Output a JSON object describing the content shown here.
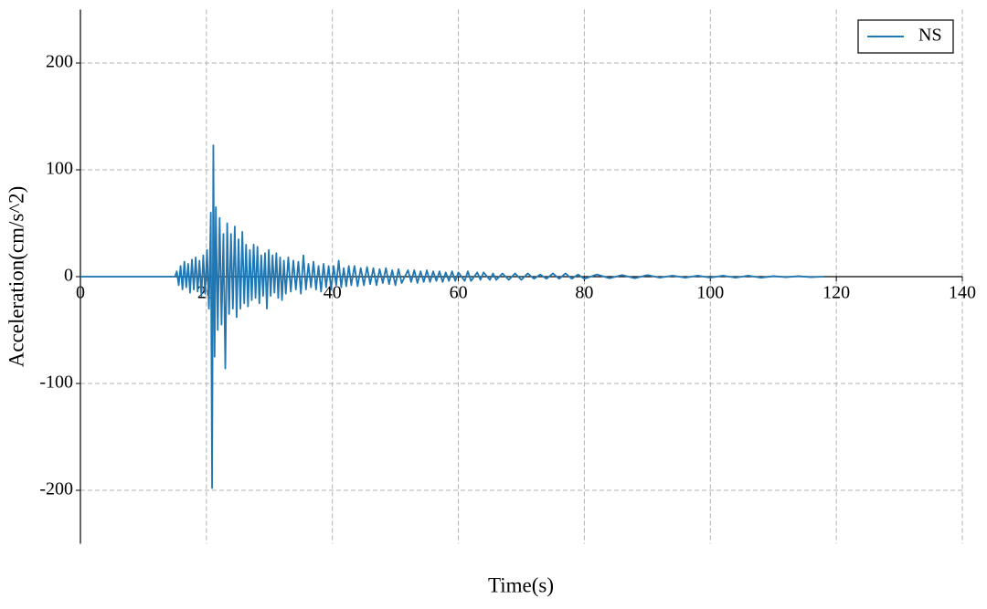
{
  "chart_data": {
    "type": "line",
    "x_label": "Time(s)",
    "y_label": "Acceleration(cm/s^2)",
    "x": [
      0,
      15.0,
      15.3,
      15.6,
      15.9,
      16.2,
      16.5,
      16.8,
      17.1,
      17.4,
      17.7,
      18.0,
      18.3,
      18.6,
      18.9,
      19.2,
      19.5,
      19.8,
      20.1,
      20.4,
      20.7,
      20.9,
      21.1,
      21.3,
      21.5,
      21.8,
      22.1,
      22.4,
      22.7,
      23.0,
      23.3,
      23.6,
      23.9,
      24.2,
      24.5,
      24.8,
      25.1,
      25.4,
      25.7,
      26.0,
      26.3,
      26.6,
      26.9,
      27.2,
      27.5,
      27.8,
      28.1,
      28.4,
      28.7,
      29.0,
      29.3,
      29.6,
      29.9,
      30.2,
      30.5,
      30.8,
      31.1,
      31.4,
      31.7,
      32.0,
      32.3,
      32.6,
      33.0,
      33.4,
      33.8,
      34.2,
      34.6,
      35.0,
      35.4,
      35.8,
      36.2,
      36.6,
      37.0,
      37.4,
      37.8,
      38.2,
      38.6,
      39.0,
      39.4,
      39.8,
      40.2,
      40.6,
      41.0,
      41.4,
      41.8,
      42.2,
      42.6,
      43.0,
      43.5,
      44.0,
      44.5,
      45.0,
      45.5,
      46.0,
      46.5,
      47.0,
      47.5,
      48.0,
      48.5,
      49.0,
      49.5,
      50.0,
      50.5,
      51.0,
      52.0,
      52.5,
      53.0,
      53.5,
      54.0,
      54.5,
      55.0,
      55.5,
      56.0,
      56.5,
      57.0,
      57.5,
      58.0,
      58.5,
      59.0,
      59.5,
      60.0,
      61.0,
      61.5,
      62.0,
      63.0,
      63.5,
      64.0,
      65.0,
      65.5,
      66.0,
      67.0,
      68.0,
      69.0,
      70.0,
      71.0,
      72.0,
      73.0,
      74.0,
      75.0,
      76.0,
      77.0,
      78.0,
      79.0,
      80.0,
      82.0,
      84.0,
      86.0,
      88.0,
      90.0,
      92.0,
      94.0,
      96.0,
      98.0,
      100.0,
      102.0,
      104.0,
      106.0,
      108.0,
      110.0,
      112.0,
      114.0,
      116.0,
      118.0
    ],
    "series": [
      {
        "name": "NS",
        "color": "#1f77b4",
        "values": [
          0,
          0,
          5,
          -8,
          10,
          -12,
          14,
          -10,
          12,
          -15,
          16,
          -12,
          18,
          -14,
          15,
          -18,
          20,
          -16,
          25,
          -30,
          60,
          -198,
          123,
          -75,
          65,
          -50,
          55,
          -45,
          40,
          -86,
          50,
          -35,
          40,
          -30,
          47,
          -38,
          35,
          -30,
          42,
          -25,
          30,
          -28,
          25,
          -22,
          30,
          -20,
          28,
          -25,
          20,
          -18,
          22,
          -30,
          25,
          -18,
          20,
          -15,
          22,
          -20,
          18,
          -22,
          15,
          -16,
          18,
          -14,
          15,
          -12,
          14,
          -16,
          20,
          -12,
          12,
          -10,
          14,
          -12,
          10,
          -14,
          12,
          -10,
          10,
          -12,
          10,
          -8,
          15,
          -10,
          8,
          -9,
          10,
          -8,
          10,
          -9,
          8,
          -8,
          9,
          -7,
          8,
          -8,
          7,
          -6,
          8,
          -7,
          6,
          -8,
          7,
          -6,
          6,
          -5,
          6,
          -6,
          5,
          -5,
          6,
          -5,
          5,
          -4,
          5,
          -5,
          4,
          -4,
          5,
          -4,
          4,
          -4,
          5,
          -4,
          4,
          -3,
          4,
          -3,
          3,
          -3,
          3,
          -3,
          3,
          -3,
          3,
          -2,
          2,
          -2,
          3,
          -2,
          3,
          -2,
          2,
          -2,
          2,
          -1.5,
          1.5,
          -1.5,
          1.5,
          -1,
          1,
          -1,
          1,
          -1,
          1,
          -1,
          1,
          -1,
          0.5,
          -0.5,
          0.5,
          -0.5,
          0
        ]
      }
    ],
    "xlim": [
      0,
      140
    ],
    "xticks": [
      0,
      20,
      40,
      60,
      80,
      100,
      120,
      140
    ],
    "ylim": [
      -250,
      250
    ],
    "yticks": [
      -200,
      -100,
      0,
      100,
      200
    ],
    "grid": true,
    "legend": "upper right"
  }
}
